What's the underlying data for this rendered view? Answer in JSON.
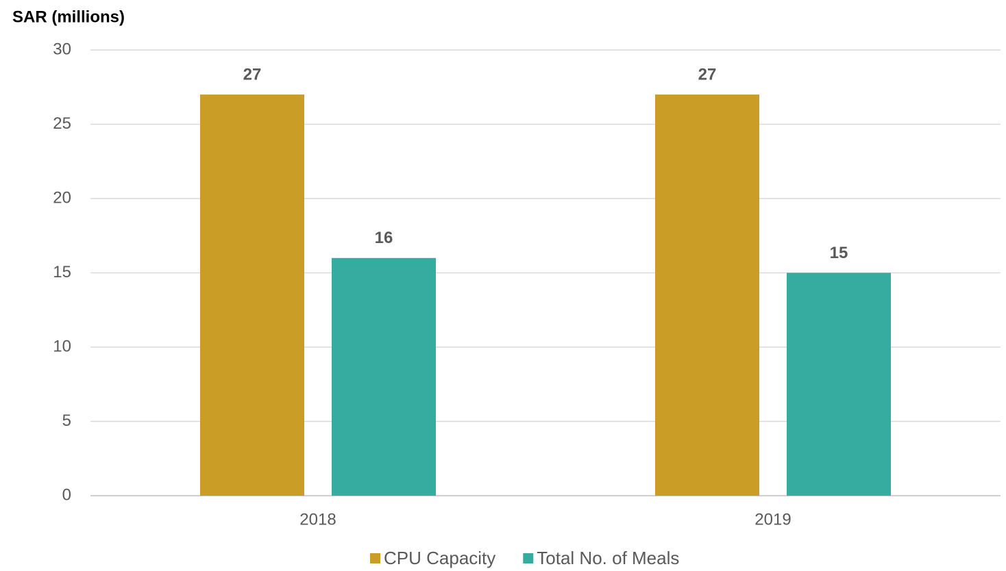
{
  "chart_data": {
    "type": "bar",
    "y_label": "SAR (millions)",
    "categories": [
      "2018",
      "2019"
    ],
    "series": [
      {
        "name": "CPU Capacity",
        "color": "#c99d26",
        "values": [
          27,
          27
        ]
      },
      {
        "name": "Total No. of Meals",
        "color": "#36ab9f",
        "values": [
          16,
          15
        ]
      }
    ],
    "ylim": [
      0,
      30
    ],
    "yticks": [
      0,
      5,
      10,
      15,
      20,
      25,
      30
    ],
    "grid": true,
    "legend": "bottom"
  }
}
